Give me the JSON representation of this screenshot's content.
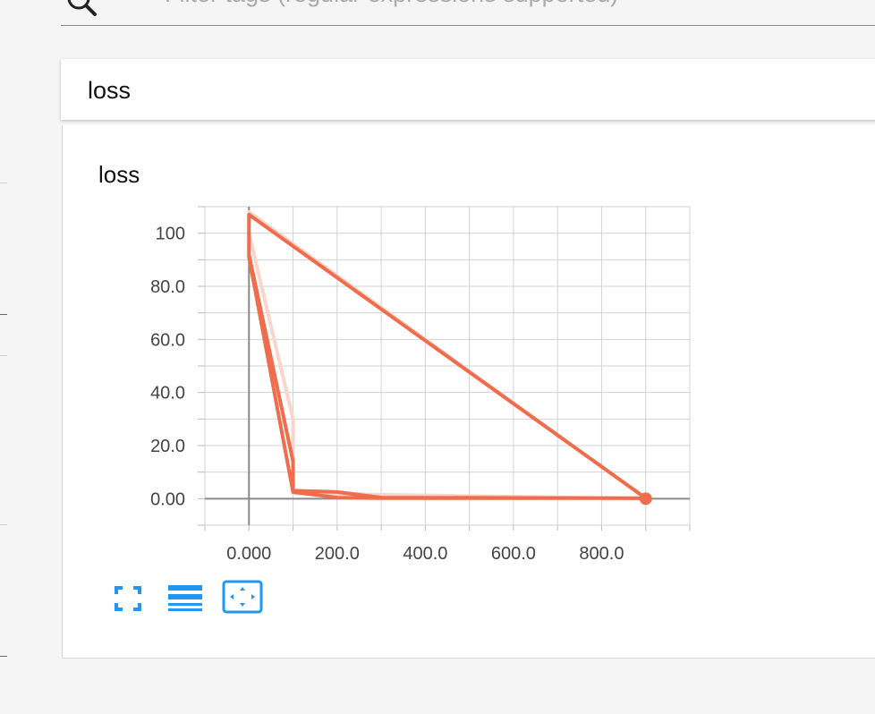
{
  "search": {
    "placeholder": "Filter tags (regular expressions supported)",
    "icon": "search-icon"
  },
  "category": {
    "title": "loss"
  },
  "card": {
    "title": "loss",
    "accent": "#ef6c4c",
    "tools": [
      {
        "name": "fit-to-screen",
        "icon": "expand-icon"
      },
      {
        "name": "toggle-log",
        "icon": "list-icon"
      },
      {
        "name": "fit-domain",
        "icon": "fit-domain-icon"
      }
    ]
  },
  "chart_data": {
    "type": "line",
    "title": "loss",
    "xlabel": "",
    "ylabel": "",
    "xlim": [
      -100,
      1000
    ],
    "ylim": [
      -10,
      110
    ],
    "x_ticks": [
      0,
      200,
      400,
      600,
      800
    ],
    "x_tick_labels": [
      "0.000",
      "200.0",
      "400.0",
      "600.0",
      "800.0"
    ],
    "y_ticks": [
      0,
      20,
      40,
      60,
      80,
      100
    ],
    "y_tick_labels": [
      "0.00",
      "20.0",
      "40.0",
      "60.0",
      "80.0",
      "100"
    ],
    "grid": true,
    "series": [
      {
        "style": "smoothed",
        "color": "#ef6c4c",
        "x": [
          0,
          0,
          100,
          100,
          200,
          300,
          900,
          0,
          0,
          100,
          200,
          300,
          900
        ],
        "y": [
          107,
          92,
          14,
          3,
          2.5,
          0.4,
          0.2,
          107,
          91,
          2.5,
          0.4,
          0.2,
          0.2
        ]
      },
      {
        "style": "raw",
        "color": "#fbd5cb",
        "x": [
          0,
          900,
          100,
          100,
          0
        ],
        "y": [
          108,
          0,
          2,
          30,
          100
        ]
      }
    ],
    "marker": {
      "x": 900,
      "y": 0
    }
  }
}
